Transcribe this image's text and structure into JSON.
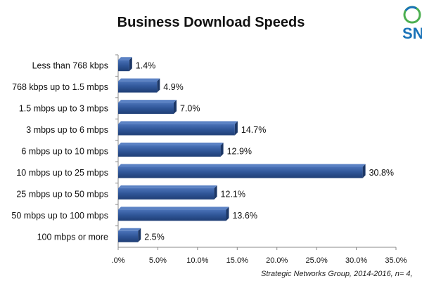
{
  "chart_data": {
    "type": "bar",
    "orientation": "horizontal",
    "title": "Business Download Speeds",
    "categories": [
      "Less than 768 kbps",
      "768 kbps up to 1.5 mbps",
      "1.5 mbps up to 3 mbps",
      "3 mbps up to 6 mbps",
      "6 mbps up to 10 mbps",
      "10 mbps up to 25 mbps",
      "25 mbps up to 50 mbps",
      "50 mbps up to 100 mbps",
      "100 mbps or more"
    ],
    "values": [
      1.4,
      4.9,
      7.0,
      14.7,
      12.9,
      30.8,
      12.1,
      13.6,
      2.5
    ],
    "value_labels": [
      "1.4%",
      "4.9%",
      "7.0%",
      "14.7%",
      "12.9%",
      "30.8%",
      "12.1%",
      "13.6%",
      "2.5%"
    ],
    "xlim": [
      0,
      35
    ],
    "x_ticks": [
      0,
      5,
      10,
      15,
      20,
      25,
      30,
      35
    ],
    "x_tick_labels": [
      ".0%",
      "5.0%",
      "10.0%",
      "15.0%",
      "20.0%",
      "25.0%",
      "30.0%",
      "35.0%"
    ],
    "xlabel": "",
    "ylabel": "",
    "grid": false,
    "legend": "none",
    "bar_color": "#2f5597"
  },
  "source": "Strategic Networks Group, 2014-2016, n= 4,",
  "logo": {
    "text": "SN",
    "colors": [
      "#1a73b8",
      "#4caf50",
      "#f5a623"
    ]
  }
}
